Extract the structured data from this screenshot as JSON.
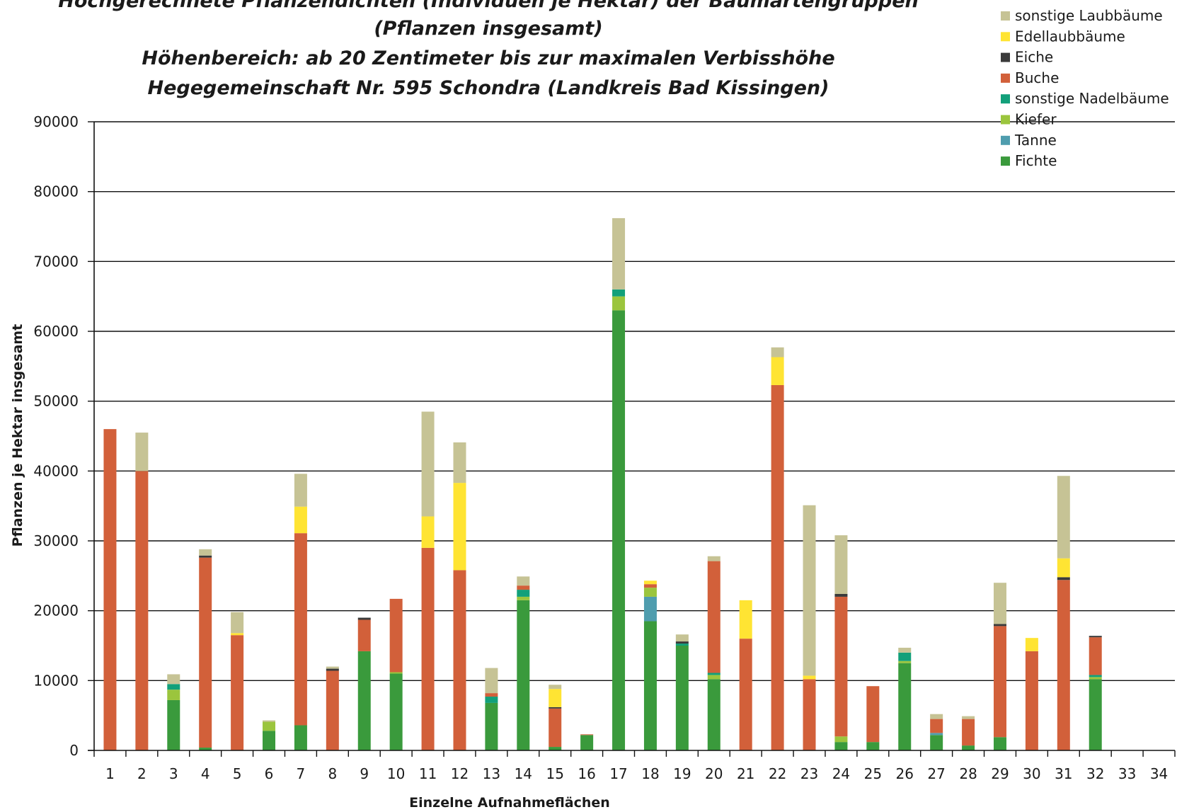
{
  "chart_data": {
    "type": "bar",
    "stacked": true,
    "title_lines": [
      "Hochgerechnete Pflanzendichten (Individuen je Hektar) der Baumartengruppen",
      "(Pflanzen insgesamt)",
      "Höhenbereich: ab 20 Zentimeter bis zur maximalen Verbisshöhe",
      "Hegegemeinschaft Nr. 595 Schondra (Landkreis Bad Kissingen)"
    ],
    "xlabel": "Einzelne Aufnahmeflächen",
    "ylabel": "Pflanzen je Hektar insgesamt",
    "ylim": [
      0,
      90000
    ],
    "yticks": [
      0,
      10000,
      20000,
      30000,
      40000,
      50000,
      60000,
      70000,
      80000,
      90000
    ],
    "grid": true,
    "legend_position": "top-right",
    "categories": [
      "1",
      "2",
      "3",
      "4",
      "5",
      "6",
      "7",
      "8",
      "9",
      "10",
      "11",
      "12",
      "13",
      "14",
      "15",
      "16",
      "17",
      "18",
      "19",
      "20",
      "21",
      "22",
      "23",
      "24",
      "25",
      "26",
      "27",
      "28",
      "29",
      "30",
      "31",
      "32",
      "33",
      "34"
    ],
    "series": [
      {
        "name": "Fichte",
        "color": "#3a9a3c",
        "values": [
          0,
          0,
          7200,
          400,
          0,
          2800,
          3600,
          0,
          14200,
          11000,
          0,
          0,
          6800,
          21500,
          500,
          2200,
          63000,
          18500,
          15000,
          10200,
          0,
          0,
          0,
          1200,
          1200,
          12500,
          2200,
          700,
          1900,
          0,
          0,
          10200,
          0,
          0
        ]
      },
      {
        "name": "Tanne",
        "color": "#4f9dae",
        "values": [
          0,
          0,
          0,
          0,
          0,
          0,
          0,
          0,
          0,
          0,
          0,
          0,
          0,
          0,
          0,
          0,
          0,
          3500,
          0,
          0,
          0,
          0,
          0,
          0,
          0,
          0,
          300,
          0,
          0,
          0,
          0,
          0,
          0,
          0
        ]
      },
      {
        "name": "Kiefer",
        "color": "#9bc53d",
        "values": [
          0,
          0,
          1500,
          0,
          0,
          1300,
          0,
          0,
          0,
          200,
          0,
          0,
          0,
          500,
          0,
          0,
          2000,
          1300,
          0,
          600,
          0,
          0,
          0,
          800,
          0,
          300,
          0,
          0,
          0,
          0,
          0,
          300,
          0,
          0
        ]
      },
      {
        "name": "sonstige Nadelbäume",
        "color": "#12a07a",
        "values": [
          0,
          0,
          800,
          0,
          0,
          0,
          0,
          0,
          0,
          0,
          0,
          0,
          900,
          1000,
          0,
          0,
          1000,
          0,
          300,
          300,
          0,
          0,
          0,
          0,
          0,
          1200,
          0,
          0,
          0,
          0,
          0,
          300,
          0,
          0
        ]
      },
      {
        "name": "Buche",
        "color": "#d2603a",
        "values": [
          46000,
          40000,
          0,
          27200,
          16500,
          0,
          27500,
          11400,
          4500,
          10500,
          29000,
          25800,
          500,
          600,
          5500,
          100,
          0,
          500,
          0,
          16000,
          16000,
          52300,
          10200,
          20000,
          8000,
          0,
          2000,
          3800,
          15900,
          14200,
          24400,
          5400,
          0,
          0
        ]
      },
      {
        "name": "Eiche",
        "color": "#3a3a3a",
        "values": [
          0,
          0,
          0,
          300,
          0,
          0,
          0,
          300,
          300,
          0,
          0,
          0,
          0,
          0,
          200,
          0,
          0,
          0,
          300,
          0,
          0,
          0,
          0,
          400,
          0,
          0,
          0,
          0,
          300,
          0,
          400,
          200,
          0,
          0
        ]
      },
      {
        "name": "Edellaubbäume",
        "color": "#ffe433",
        "values": [
          0,
          0,
          0,
          0,
          300,
          0,
          3800,
          0,
          0,
          0,
          4500,
          12500,
          0,
          0,
          2600,
          0,
          0,
          500,
          0,
          0,
          5500,
          4000,
          500,
          0,
          0,
          0,
          0,
          0,
          0,
          1900,
          2700,
          0,
          0,
          0
        ]
      },
      {
        "name": "sonstige Laubbäume",
        "color": "#c6c395",
        "values": [
          0,
          5500,
          1400,
          900,
          3000,
          200,
          4700,
          300,
          0,
          0,
          15000,
          5800,
          3600,
          1300,
          600,
          0,
          10200,
          0,
          1000,
          700,
          0,
          1400,
          24400,
          8400,
          0,
          700,
          700,
          400,
          5900,
          0,
          11800,
          0,
          0,
          0
        ]
      }
    ],
    "legend_order": [
      "sonstige Laubbäume",
      "Edellaubbäume",
      "Eiche",
      "Buche",
      "sonstige Nadelbäume",
      "Kiefer",
      "Tanne",
      "Fichte"
    ]
  }
}
